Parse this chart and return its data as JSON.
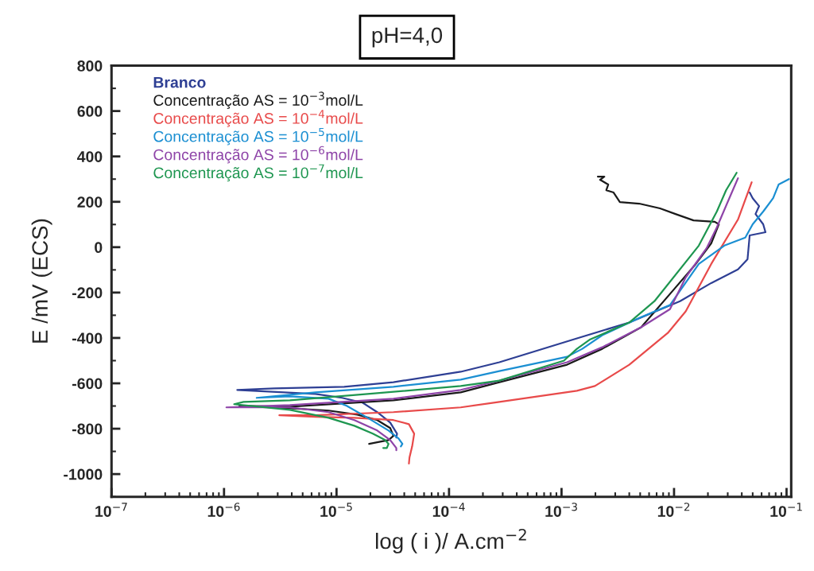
{
  "chart_data": {
    "type": "line",
    "title": "pH=4,0",
    "xlabel": "log ( i )/ A.cm$^{−2}$",
    "ylabel": "E /mV (ECS)",
    "log": "x",
    "xlim": [
      1e-07,
      0.11
    ],
    "ylim": [
      -1100,
      800
    ],
    "xticks": [
      {
        "value": 1e-07,
        "label": "10$^{−7}$"
      },
      {
        "value": 1e-06,
        "label": "10$^{−6}$"
      },
      {
        "value": 1e-05,
        "label": "10$^{−5}$"
      },
      {
        "value": 0.0001,
        "label": "10$^{−4}$"
      },
      {
        "value": 0.001,
        "label": "10$^{−3}$"
      },
      {
        "value": 0.01,
        "label": "10$^{−2}$"
      },
      {
        "value": 0.1,
        "label": "10$^{−1}$"
      }
    ],
    "yticks": [
      -1000,
      -800,
      -600,
      -400,
      -200,
      0,
      200,
      400,
      600,
      800
    ],
    "grid": false,
    "legend": "top left",
    "marker": "none",
    "line_style": "solid",
    "series": [
      {
        "name": "Branco",
        "color": "#2e3f94",
        "x": [
          3.4e-05,
          3.45e-05,
          3e-05,
          2.3e-05,
          1.7e-05,
          1.12e-05,
          6.5e-06,
          1.31e-06,
          2.8e-06,
          1.17e-05,
          3.2e-05,
          0.000127,
          0.00028,
          0.00137,
          0.004,
          0.0113,
          0.0214,
          0.037,
          0.045,
          0.047,
          0.065,
          0.062,
          0.053,
          0.057,
          0.05,
          0.047
        ],
        "values": [
          -839,
          -822,
          -773,
          -727,
          -685,
          -664,
          -647,
          -629,
          -622,
          -615,
          -595,
          -549,
          -507,
          -402,
          -332,
          -238,
          -158,
          -98,
          -53,
          52,
          66,
          101,
          146,
          181,
          216,
          241
        ]
      },
      {
        "name": "Concentração AS = 10$^{−3}$mol/L",
        "color": "#1a1a1a",
        "x": [
          1.95e-05,
          2.3e-05,
          2.9e-05,
          3.2e-05,
          3e-05,
          2.3e-05,
          1.53e-05,
          8.5e-06,
          3.85e-06,
          1.37e-06,
          3.85e-06,
          3.2e-05,
          0.000127,
          0.00028,
          0.00112,
          0.0023,
          0.0051,
          0.0097,
          0.0156,
          0.0214,
          0.025,
          0.023,
          0.0149,
          0.0103,
          0.0075,
          0.0049,
          0.0033,
          0.0029,
          0.0025,
          0.0026,
          0.0022,
          0.0024,
          0.0021
        ],
        "values": [
          -867,
          -860,
          -850,
          -832,
          -797,
          -762,
          -738,
          -720,
          -710,
          -699,
          -703,
          -675,
          -640,
          -595,
          -518,
          -448,
          -353,
          -193,
          -74,
          17,
          101,
          112,
          118,
          146,
          171,
          192,
          199,
          241,
          251,
          276,
          297,
          311,
          311
        ]
      },
      {
        "name": "Concentração AS = 10$^{−4}$mol/L",
        "color": "#e84a4a",
        "x": [
          4.4e-05,
          4.45e-05,
          4.7e-05,
          4.9e-05,
          4.4e-05,
          3.2e-05,
          1.44e-05,
          6.5e-06,
          3.1e-06,
          6.5e-06,
          3.2e-05,
          0.000127,
          0.00028,
          0.00137,
          0.00198,
          0.004,
          0.0088,
          0.0127,
          0.0214,
          0.037,
          0.049
        ],
        "values": [
          -954,
          -927,
          -878,
          -822,
          -780,
          -762,
          -752,
          -748,
          -741,
          -741,
          -727,
          -706,
          -682,
          -633,
          -612,
          -518,
          -378,
          -283,
          -74,
          122,
          286
        ]
      },
      {
        "name": "Concentração AS = 10$^{−5}$mol/L",
        "color": "#1b8fd2",
        "x": [
          3.73e-05,
          3.85e-05,
          3.56e-05,
          2.9e-05,
          1.89e-05,
          1.23e-05,
          8.5e-06,
          3.85e-06,
          1.95e-06,
          6.5e-06,
          3.2e-05,
          0.000127,
          0.00028,
          0.00112,
          0.00153,
          0.0023,
          0.0051,
          0.0092,
          0.0166,
          0.028,
          0.043,
          0.05,
          0.062,
          0.076,
          0.085,
          0.105
        ],
        "values": [
          -878,
          -867,
          -843,
          -808,
          -752,
          -699,
          -668,
          -657,
          -664,
          -640,
          -615,
          -584,
          -546,
          -483,
          -448,
          -388,
          -308,
          -255,
          -74,
          7,
          42,
          101,
          157,
          216,
          276,
          300
        ]
      },
      {
        "name": "Concentração AS = 10$^{−6}$mol/L",
        "color": "#8e44a8",
        "x": [
          3.4e-05,
          3.4e-05,
          3e-05,
          2.3e-05,
          1.44e-05,
          8.5e-06,
          3.85e-06,
          1.05e-06,
          3.85e-06,
          3.2e-05,
          0.000127,
          0.00028,
          0.00112,
          0.0023,
          0.0051,
          0.0092,
          0.0127,
          0.0195,
          0.024,
          0.031,
          0.037
        ],
        "values": [
          -895,
          -885,
          -850,
          -808,
          -762,
          -727,
          -706,
          -706,
          -696,
          -668,
          -629,
          -588,
          -507,
          -441,
          -353,
          -273,
          -133,
          -4,
          87,
          216,
          304
        ]
      },
      {
        "name": "Concentração AS = 10$^{−7}$mol/L",
        "color": "#1e9650",
        "x": [
          2.6e-05,
          2.8e-05,
          2.9e-05,
          2.7e-05,
          2.1e-05,
          1.44e-05,
          8.5e-06,
          3.85e-06,
          1.23e-06,
          1.49e-06,
          3.85e-06,
          1.89e-05,
          0.000127,
          0.00028,
          0.00105,
          0.00137,
          0.0018,
          0.004,
          0.0067,
          0.0166,
          0.024,
          0.029,
          0.036
        ],
        "values": [
          -885,
          -885,
          -867,
          -850,
          -822,
          -787,
          -752,
          -717,
          -692,
          -682,
          -675,
          -647,
          -612,
          -588,
          -500,
          -448,
          -406,
          -332,
          -238,
          7,
          157,
          251,
          328
        ]
      }
    ]
  }
}
